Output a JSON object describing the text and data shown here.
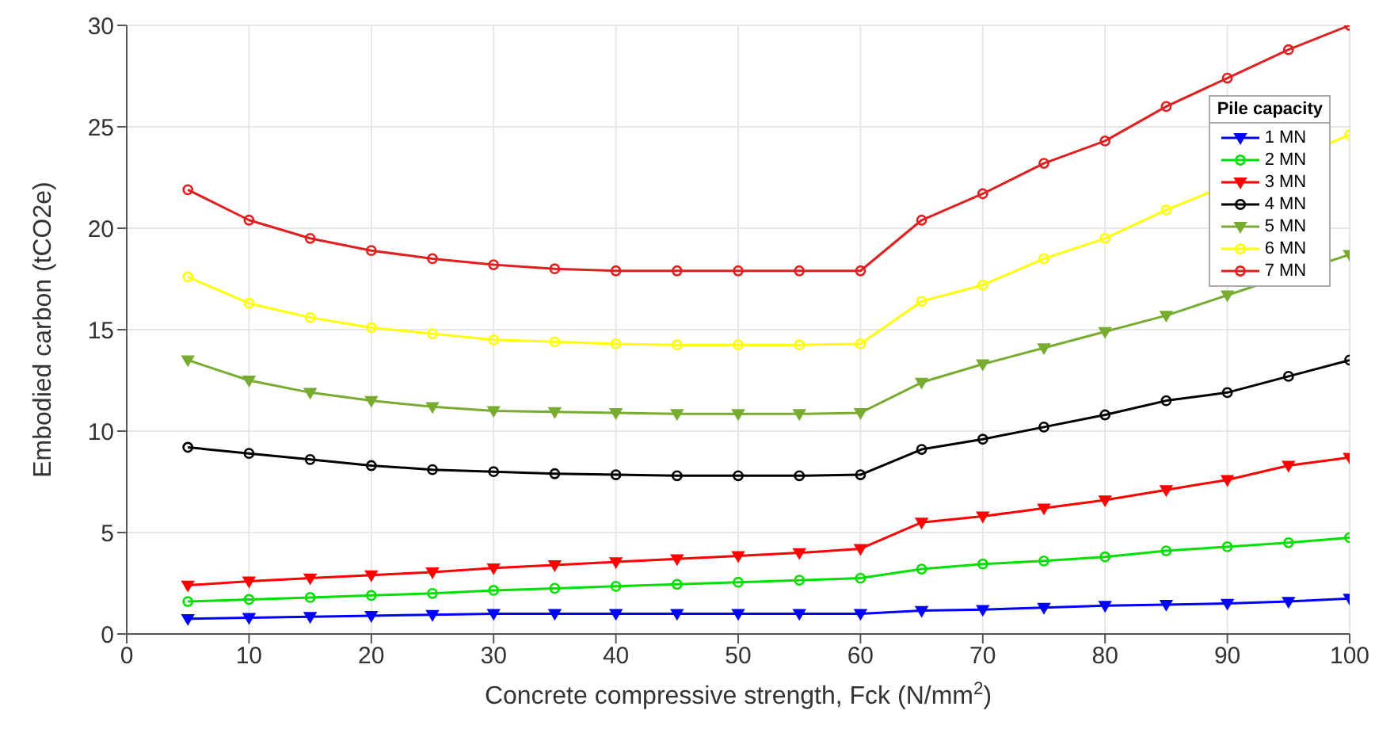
{
  "chart_data": {
    "type": "line",
    "xlabel": "Concrete compressive strength, Fck (N/mm$^{2}$)",
    "ylabel": "Embodied carbon (tCO2e)",
    "legend_title": "Pile capacity",
    "legend": "top right",
    "grid": true,
    "x": [
      5,
      10,
      15,
      20,
      25,
      30,
      35,
      40,
      45,
      50,
      55,
      60,
      65,
      70,
      75,
      80,
      85,
      90,
      95,
      100
    ],
    "xlim": [
      0,
      100
    ],
    "xticks": [
      0,
      10,
      20,
      30,
      40,
      50,
      60,
      70,
      80,
      90,
      100
    ],
    "ylim": [
      0,
      30
    ],
    "yticks": [
      0,
      5,
      10,
      15,
      20,
      25,
      30
    ],
    "series": [
      {
        "name": "1 MN",
        "color": "#0000ff",
        "marker": "triangle",
        "values": [
          0.75,
          0.8,
          0.85,
          0.9,
          0.95,
          1.0,
          1.0,
          1.0,
          1.0,
          1.0,
          1.0,
          1.0,
          1.15,
          1.2,
          1.3,
          1.4,
          1.45,
          1.5,
          1.6,
          1.75
        ]
      },
      {
        "name": "2 MN",
        "color": "#00e000",
        "marker": "circle",
        "values": [
          1.6,
          1.7,
          1.8,
          1.9,
          2.0,
          2.15,
          2.25,
          2.35,
          2.45,
          2.55,
          2.65,
          2.75,
          3.2,
          3.45,
          3.6,
          3.8,
          4.1,
          4.3,
          4.5,
          4.75
        ]
      },
      {
        "name": "3 MN",
        "color": "#ff0000",
        "marker": "triangle",
        "values": [
          2.4,
          2.6,
          2.75,
          2.9,
          3.05,
          3.25,
          3.4,
          3.55,
          3.7,
          3.85,
          4.0,
          4.2,
          5.5,
          5.8,
          6.2,
          6.6,
          7.1,
          7.6,
          8.3,
          8.7
        ]
      },
      {
        "name": "4 MN",
        "color": "#000000",
        "marker": "circle",
        "values": [
          9.2,
          8.9,
          8.6,
          8.3,
          8.1,
          8.0,
          7.9,
          7.85,
          7.8,
          7.8,
          7.8,
          7.85,
          9.1,
          9.6,
          10.2,
          10.8,
          11.5,
          11.9,
          12.7,
          13.5
        ]
      },
      {
        "name": "5 MN",
        "color": "#77ac30",
        "marker": "triangle",
        "values": [
          13.5,
          12.5,
          11.9,
          11.5,
          11.2,
          11.0,
          10.95,
          10.9,
          10.85,
          10.85,
          10.85,
          10.9,
          12.4,
          13.3,
          14.1,
          14.9,
          15.7,
          16.7,
          null,
          18.7
        ]
      },
      {
        "name": "6 MN",
        "color": "#ffff00",
        "marker": "circle",
        "values": [
          17.6,
          16.3,
          15.6,
          15.1,
          14.8,
          14.5,
          14.4,
          14.3,
          14.25,
          14.25,
          14.25,
          14.3,
          16.4,
          17.2,
          18.5,
          19.5,
          20.9,
          null,
          null,
          24.6
        ]
      },
      {
        "name": "7 MN",
        "color": "#e02020",
        "marker": "circle",
        "values": [
          21.9,
          20.4,
          19.5,
          18.9,
          18.5,
          18.2,
          18.0,
          17.9,
          17.9,
          17.9,
          17.9,
          17.9,
          20.4,
          21.7,
          23.2,
          24.3,
          26.0,
          27.4,
          28.8,
          30
        ]
      }
    ]
  }
}
